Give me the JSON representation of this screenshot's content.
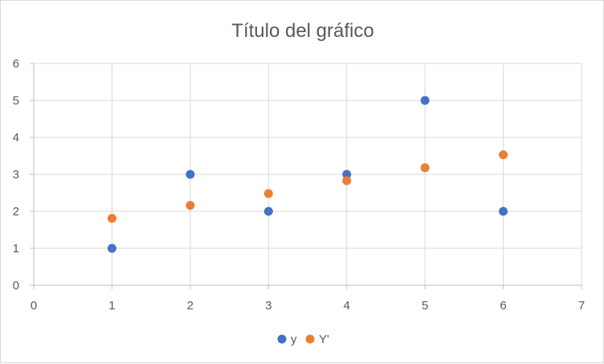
{
  "chart_data": {
    "type": "scatter",
    "title": "Título del gráfico",
    "xlabel": "",
    "ylabel": "",
    "xlim": [
      0,
      7
    ],
    "ylim": [
      0,
      6
    ],
    "xticks": [
      "0",
      "1",
      "2",
      "3",
      "4",
      "5",
      "6",
      "7"
    ],
    "yticks": [
      "0",
      "1",
      "2",
      "3",
      "4",
      "5",
      "6"
    ],
    "grid": true,
    "legend_position": "bottom",
    "series": [
      {
        "name": "y",
        "color": "#4472C4",
        "x": [
          1,
          2,
          3,
          4,
          5,
          6
        ],
        "y": [
          1,
          3,
          2,
          3,
          5,
          2
        ]
      },
      {
        "name": "Y'",
        "color": "#ED7D31",
        "x": [
          1,
          2,
          3,
          4,
          5,
          6
        ],
        "y": [
          1.81,
          2.16,
          2.48,
          2.83,
          3.18,
          3.53
        ]
      }
    ]
  }
}
